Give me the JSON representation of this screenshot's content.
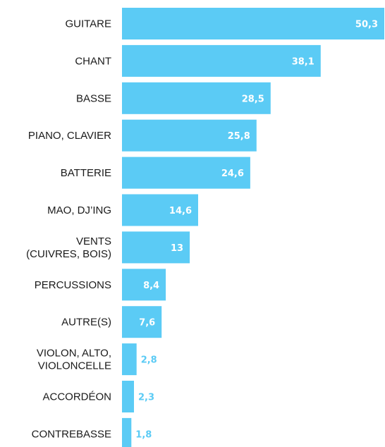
{
  "chart_data": {
    "type": "bar",
    "orientation": "horizontal",
    "categories": [
      "GUITARE",
      "CHANT",
      "BASSE",
      "PIANO, CLAVIER",
      "BATTERIE",
      "MAO, DJ’ING",
      "VENTS\n(CUIVRES, BOIS)",
      "PERCUSSIONS",
      "AUTRE(S)",
      "VIOLON, ALTO,\nVIOLONCELLE",
      "ACCORDÉON",
      "CONTREBASSE"
    ],
    "values": [
      50.3,
      38.1,
      28.5,
      25.8,
      24.6,
      14.6,
      13,
      8.4,
      7.6,
      2.8,
      2.3,
      1.8
    ],
    "value_labels": [
      "50,3",
      "38,1",
      "28,5",
      "25,8",
      "24,6",
      "14,6",
      "13",
      "8,4",
      "7,6",
      "2,8",
      "2,3",
      "1,8"
    ],
    "xlim": [
      0,
      50.3
    ],
    "grid": false,
    "bar_color": "#5BCBF5",
    "label_inside_color": "#ffffff",
    "label_outside_color": "#5BCBF5",
    "label_color": "#1a1a1a"
  }
}
